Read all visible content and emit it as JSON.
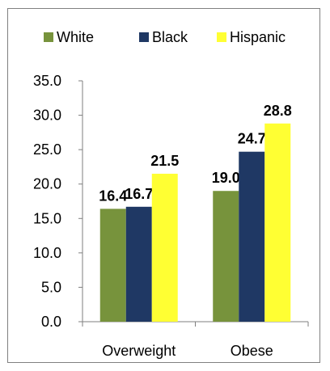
{
  "chart_data": {
    "type": "bar",
    "categories": [
      "Overweight",
      "Obese"
    ],
    "series": [
      {
        "name": "White",
        "values": [
          16.4,
          19.0
        ],
        "color": "#77933C"
      },
      {
        "name": "Black",
        "values": [
          16.7,
          24.7
        ],
        "color": "#1F3864"
      },
      {
        "name": "Hispanic",
        "values": [
          21.5,
          28.8
        ],
        "color": "#FFFF33"
      }
    ],
    "data_labels": [
      [
        "16.4",
        "19.0"
      ],
      [
        "16.7",
        "24.7"
      ],
      [
        "21.5",
        "28.8"
      ]
    ],
    "ylim": [
      0,
      35
    ],
    "y_ticks": [
      "0.0",
      "5.0",
      "10.0",
      "15.0",
      "20.0",
      "25.0",
      "30.0",
      "35.0"
    ],
    "grid": false,
    "legend_position": "top",
    "title": "",
    "xlabel": "",
    "ylabel": ""
  }
}
